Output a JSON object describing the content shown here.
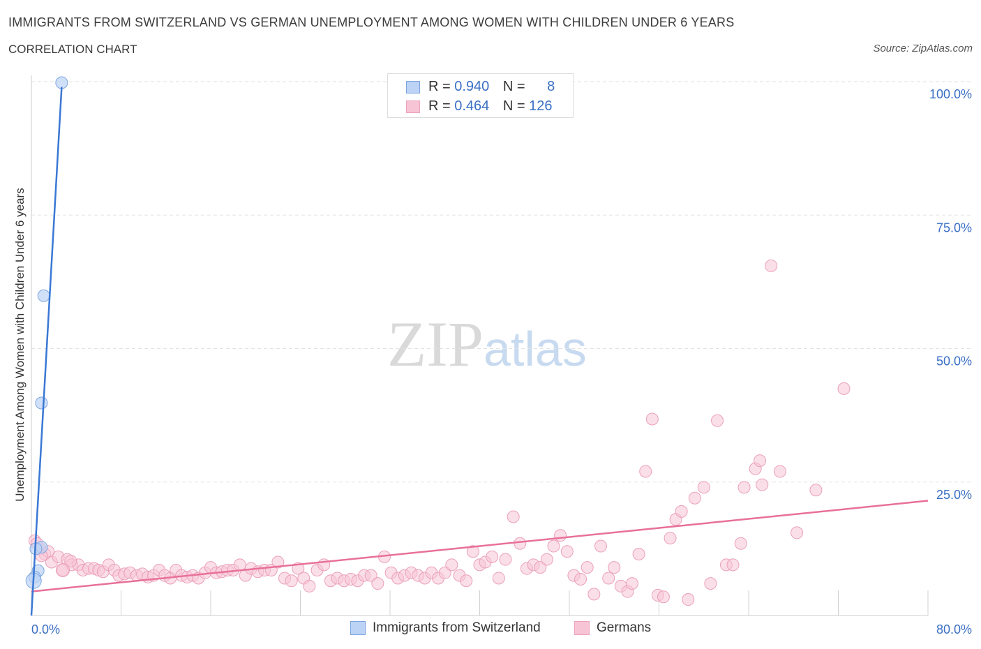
{
  "title": "IMMIGRANTS FROM SWITZERLAND VS GERMAN UNEMPLOYMENT AMONG WOMEN WITH CHILDREN UNDER 6 YEARS",
  "subtitle": "CORRELATION CHART",
  "source": "Source: ZipAtlas.com",
  "watermark": {
    "zip": "ZIP",
    "atlas": "atlas"
  },
  "legend": {
    "rows": [
      {
        "r_label": "R =",
        "r_value": "0.940",
        "n_label": "N =",
        "n_value": "8"
      },
      {
        "r_label": "R =",
        "r_value": "0.464",
        "n_label": "N =",
        "n_value": "126"
      }
    ]
  },
  "bottom_legend": [
    "Immigrants from Switzerland",
    "Germans"
  ],
  "chart_data": {
    "type": "scatter",
    "title": "IMMIGRANTS FROM SWITZERLAND VS GERMAN UNEMPLOYMENT AMONG WOMEN WITH CHILDREN UNDER 6 YEARS",
    "xlabel": "",
    "ylabel": "Unemployment Among Women with Children Under 6 years",
    "xlim": [
      0,
      80
    ],
    "ylim": [
      0,
      100
    ],
    "x_tick_labels": [
      "0.0%",
      "80.0%"
    ],
    "y_tick_labels": [
      "100.0%",
      "75.0%",
      "50.0%",
      "25.0%"
    ],
    "y_ticks": [
      100,
      75,
      50,
      25
    ],
    "x_minor_ticks": [
      8,
      16,
      24,
      32,
      40,
      48,
      56,
      64,
      72,
      80
    ],
    "colors": {
      "swiss": "#3a78d4",
      "swiss_fill": "#bcd3f5",
      "german": "#e8709a",
      "german_fill": "#f7c4d5",
      "tick_label": "#3a6fc4"
    },
    "series": [
      {
        "name": "Immigrants from Switzerland",
        "R": 0.94,
        "N": 8,
        "trend": {
          "x1": 0,
          "y1": 0,
          "x2": 2.7,
          "y2": 99
        },
        "points": [
          [
            2.7,
            99.8
          ],
          [
            1.1,
            59.9
          ],
          [
            0.9,
            39.8
          ],
          [
            0.9,
            12.8
          ],
          [
            0.6,
            8.4
          ],
          [
            0.3,
            7.2
          ],
          [
            0.2,
            6.5
          ],
          [
            0.4,
            12.5
          ]
        ]
      },
      {
        "name": "Germans",
        "R": 0.464,
        "N": 126,
        "trend": {
          "x1": 0,
          "y1": 4.5,
          "x2": 80,
          "y2": 21.5
        },
        "points": [
          [
            0.3,
            14
          ],
          [
            0.8,
            12.5
          ],
          [
            1.2,
            11.5
          ],
          [
            1.5,
            12
          ],
          [
            1.8,
            10
          ],
          [
            2.4,
            11
          ],
          [
            2.8,
            8.5
          ],
          [
            3.2,
            10.5
          ],
          [
            3.6,
            9.5
          ],
          [
            4.2,
            9.5
          ],
          [
            4.6,
            8.5
          ],
          [
            5.1,
            8.8
          ],
          [
            5.6,
            8.8
          ],
          [
            6.0,
            8.5
          ],
          [
            6.4,
            8.2
          ],
          [
            6.9,
            9.5
          ],
          [
            7.4,
            8.5
          ],
          [
            7.8,
            7.5
          ],
          [
            8.3,
            7.8
          ],
          [
            8.8,
            8
          ],
          [
            9.4,
            7.5
          ],
          [
            9.9,
            7.8
          ],
          [
            10.4,
            7.2
          ],
          [
            10.9,
            7.5
          ],
          [
            11.4,
            8.5
          ],
          [
            11.9,
            7.5
          ],
          [
            12.4,
            7
          ],
          [
            12.9,
            8.5
          ],
          [
            13.4,
            7.5
          ],
          [
            13.9,
            7.2
          ],
          [
            14.4,
            7.5
          ],
          [
            14.9,
            7
          ],
          [
            15.5,
            8
          ],
          [
            16.0,
            9
          ],
          [
            16.5,
            8
          ],
          [
            17.0,
            8.2
          ],
          [
            17.5,
            8.5
          ],
          [
            18.0,
            8.5
          ],
          [
            18.6,
            9.5
          ],
          [
            19.1,
            7.5
          ],
          [
            19.6,
            8.8
          ],
          [
            20.2,
            8.2
          ],
          [
            20.8,
            8.5
          ],
          [
            21.4,
            8.5
          ],
          [
            22.0,
            10
          ],
          [
            22.6,
            7
          ],
          [
            23.2,
            6.5
          ],
          [
            23.8,
            8.8
          ],
          [
            24.3,
            7
          ],
          [
            24.8,
            5.5
          ],
          [
            25.5,
            8.5
          ],
          [
            26.1,
            9.5
          ],
          [
            26.7,
            6.5
          ],
          [
            27.3,
            7
          ],
          [
            27.9,
            6.5
          ],
          [
            28.5,
            6.8
          ],
          [
            29.1,
            6.5
          ],
          [
            29.7,
            7.5
          ],
          [
            30.3,
            7.5
          ],
          [
            30.9,
            6
          ],
          [
            31.5,
            11
          ],
          [
            32.1,
            8
          ],
          [
            32.7,
            7
          ],
          [
            33.3,
            7.5
          ],
          [
            33.9,
            8
          ],
          [
            34.5,
            7.5
          ],
          [
            35.1,
            7
          ],
          [
            35.7,
            8
          ],
          [
            36.3,
            7
          ],
          [
            36.9,
            8
          ],
          [
            37.5,
            9.5
          ],
          [
            38.2,
            7.5
          ],
          [
            38.8,
            6.5
          ],
          [
            39.4,
            12
          ],
          [
            40.0,
            9.5
          ],
          [
            40.5,
            10
          ],
          [
            41.1,
            11
          ],
          [
            41.7,
            7
          ],
          [
            42.3,
            10.5
          ],
          [
            43.0,
            18.5
          ],
          [
            43.6,
            13.5
          ],
          [
            44.2,
            8.8
          ],
          [
            44.8,
            9.5
          ],
          [
            45.4,
            9
          ],
          [
            46.0,
            10.5
          ],
          [
            46.6,
            13
          ],
          [
            47.2,
            15
          ],
          [
            47.8,
            12
          ],
          [
            48.4,
            7.5
          ],
          [
            49.0,
            6.8
          ],
          [
            49.6,
            9
          ],
          [
            50.2,
            4
          ],
          [
            50.8,
            13
          ],
          [
            51.5,
            7
          ],
          [
            52.0,
            9
          ],
          [
            52.6,
            5.5
          ],
          [
            53.2,
            4.5
          ],
          [
            53.6,
            6
          ],
          [
            54.2,
            11.5
          ],
          [
            54.8,
            27
          ],
          [
            55.4,
            36.8
          ],
          [
            55.9,
            3.8
          ],
          [
            56.4,
            3.5
          ],
          [
            57.0,
            14.5
          ],
          [
            57.5,
            18
          ],
          [
            58.0,
            19.5
          ],
          [
            58.6,
            3
          ],
          [
            59.2,
            22
          ],
          [
            60.0,
            24
          ],
          [
            60.6,
            6
          ],
          [
            61.2,
            36.5
          ],
          [
            62.0,
            9.5
          ],
          [
            62.6,
            9.5
          ],
          [
            63.3,
            13.5
          ],
          [
            63.6,
            24
          ],
          [
            64.6,
            27.5
          ],
          [
            65.0,
            29
          ],
          [
            65.2,
            24.5
          ],
          [
            66.0,
            65.5
          ],
          [
            66.8,
            27
          ],
          [
            68.3,
            15.5
          ],
          [
            70.0,
            23.5
          ],
          [
            72.5,
            42.5
          ],
          [
            0.5,
            13.5
          ],
          [
            0.9,
            11.2
          ],
          [
            3.5,
            10.2
          ]
        ]
      }
    ]
  }
}
